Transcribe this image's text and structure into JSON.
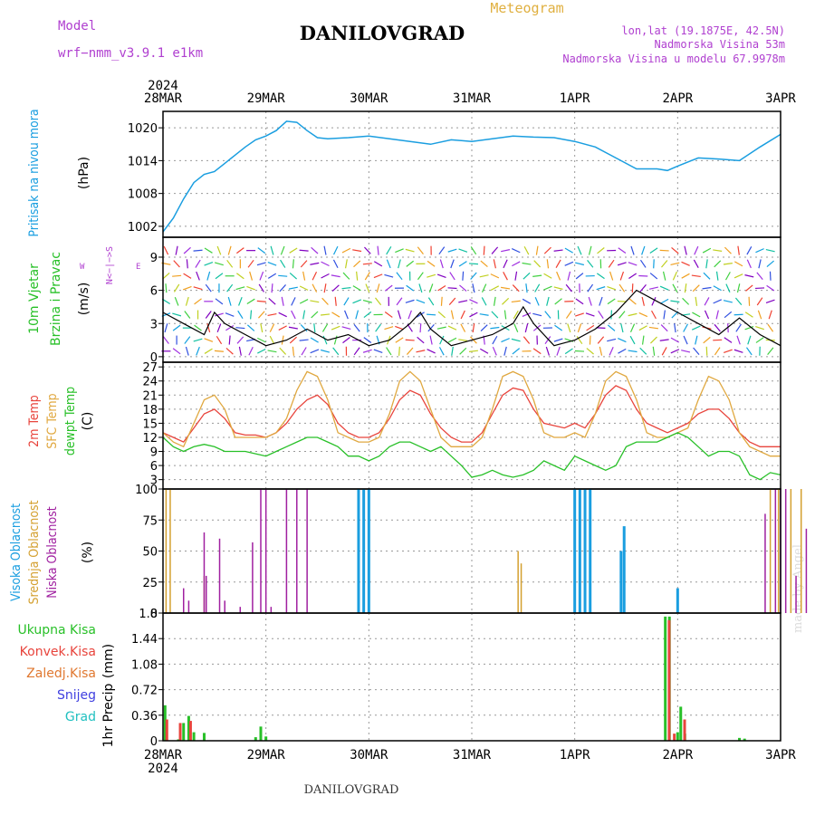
{
  "header": {
    "model_label": "Model",
    "model_name": "wrf−nmm_v3.9.1 e1km",
    "title": "DANILOVGRAD",
    "meteogram_label": "Meteogram",
    "lonlat": "lon,lat (19.1875E, 42.5N)",
    "elevation": "Nadmorska Visina 53m",
    "model_elevation": "Nadmorska Visina u modelu 67.9978m"
  },
  "footer": {
    "station": "DANILOVGRAD",
    "credit": "made by Angel"
  },
  "time_axis": {
    "labels": [
      "28MAR",
      "29MAR",
      "30MAR",
      "31MAR",
      "1APR",
      "2APR",
      "3APR"
    ],
    "year_label": "2024"
  },
  "colors": {
    "pressure": "#1a9ee0",
    "temp_2m": "#e8443c",
    "temp_sfc": "#e0a840",
    "dewpoint": "#28c028",
    "cloud_high": "#1a9ee0",
    "cloud_mid": "#d4a030",
    "cloud_low": "#a020a0",
    "precip_total": "#28c028",
    "precip_conv": "#e8443c",
    "precip_frz": "#e07830",
    "snow": "#4040e0",
    "hail": "#20c0c0",
    "wind_speed": "#000000",
    "gust": "#e8443c"
  },
  "chart_data": [
    {
      "type": "line",
      "panel": "pressure",
      "ylabel_title": "Pritisak na nivou mora",
      "ylabel_unit": "(hPa)",
      "yticks": [
        1002,
        1008,
        1014,
        1020
      ],
      "ylim": [
        1000,
        1023
      ],
      "x_days": [
        0,
        0.1,
        0.2,
        0.3,
        0.4,
        0.5,
        0.6,
        0.7,
        0.8,
        0.9,
        1.0,
        1.1,
        1.2,
        1.3,
        1.4,
        1.5,
        1.6,
        1.8,
        2.0,
        2.2,
        2.4,
        2.6,
        2.8,
        3.0,
        3.2,
        3.4,
        3.6,
        3.8,
        4.0,
        4.2,
        4.4,
        4.6,
        4.8,
        4.9,
        5.0,
        5.2,
        5.4,
        5.6,
        5.8,
        6.0
      ],
      "series": [
        {
          "values": [
            1001,
            1003.5,
            1007,
            1010,
            1011.5,
            1012,
            1013.5,
            1015,
            1016.5,
            1017.8,
            1018.5,
            1019.5,
            1021.2,
            1021,
            1019.5,
            1018.2,
            1018,
            1018.2,
            1018.5,
            1018,
            1017.5,
            1017,
            1017.8,
            1017.5,
            1018,
            1018.5,
            1018.3,
            1018.2,
            1017.5,
            1016.5,
            1014.5,
            1012.5,
            1012.5,
            1012.2,
            1013,
            1014.5,
            1014.3,
            1014,
            1016.5,
            1018.8
          ]
        }
      ],
      "grid": true
    },
    {
      "type": "line",
      "panel": "wind",
      "ylabel_title": "10m Vjetar",
      "ylabel_title2": "Brzina i Pravac",
      "ylabel_unit": "(m/s)",
      "compass_ns": "N<−|−>S",
      "compass_w": "W",
      "compass_e": "E",
      "yticks": [
        0,
        3,
        6,
        9
      ],
      "ylim": [
        -0.5,
        10.8
      ],
      "x_days": [
        0,
        0.2,
        0.4,
        0.5,
        0.6,
        0.8,
        1.0,
        1.2,
        1.4,
        1.6,
        1.8,
        2.0,
        2.2,
        2.4,
        2.5,
        2.6,
        2.8,
        3.0,
        3.2,
        3.4,
        3.5,
        3.6,
        3.8,
        4.0,
        4.2,
        4.4,
        4.6,
        4.8,
        5.0,
        5.2,
        5.4,
        5.6,
        5.8,
        6.0
      ],
      "series": [
        {
          "name": "speed",
          "values": [
            4,
            3,
            2,
            4,
            3,
            2,
            1,
            1.5,
            2.5,
            1.5,
            2,
            1,
            1.5,
            3,
            4,
            2.5,
            1,
            1.5,
            2,
            3,
            4.5,
            3,
            1,
            1.5,
            2.5,
            4,
            6,
            5,
            4,
            3,
            2,
            3.5,
            2,
            1
          ]
        }
      ],
      "grid": true
    },
    {
      "type": "line",
      "panel": "temperature",
      "ylabel_title": "2m Temp",
      "ylabel_title2": "SFC Temp",
      "ylabel_title3": "dewpt Temp",
      "ylabel_unit": "(C)",
      "yticks": [
        3,
        6,
        9,
        12,
        15,
        18,
        21,
        24,
        27
      ],
      "ylim": [
        1,
        28
      ],
      "x_days": [
        0,
        0.1,
        0.2,
        0.3,
        0.4,
        0.5,
        0.6,
        0.7,
        0.8,
        0.9,
        1.0,
        1.1,
        1.2,
        1.3,
        1.4,
        1.5,
        1.6,
        1.7,
        1.8,
        1.9,
        2.0,
        2.1,
        2.2,
        2.3,
        2.4,
        2.5,
        2.6,
        2.7,
        2.8,
        2.9,
        3.0,
        3.1,
        3.2,
        3.3,
        3.4,
        3.5,
        3.6,
        3.7,
        3.8,
        3.9,
        4.0,
        4.1,
        4.2,
        4.3,
        4.4,
        4.5,
        4.6,
        4.7,
        4.8,
        4.9,
        5.0,
        5.1,
        5.2,
        5.3,
        5.4,
        5.5,
        5.6,
        5.7,
        5.8,
        5.9,
        6.0
      ],
      "series": [
        {
          "name": "2m Temp",
          "values": [
            13,
            12,
            11,
            14,
            17,
            18,
            16,
            13,
            12.5,
            12.5,
            12,
            13,
            15,
            18,
            20,
            21,
            19,
            15,
            13,
            12,
            12,
            13,
            16,
            20,
            22,
            21,
            17,
            14,
            12,
            11,
            11,
            13,
            17,
            21,
            22.5,
            22,
            18,
            15,
            14.5,
            14,
            15,
            14,
            17,
            21,
            23,
            22,
            18,
            15,
            14,
            13,
            14,
            15,
            17,
            18,
            18,
            16,
            13,
            11,
            10,
            10,
            10
          ]
        },
        {
          "name": "SFC Temp",
          "values": [
            13,
            11,
            10,
            15,
            20,
            21,
            18,
            12,
            12,
            12,
            12,
            13,
            16,
            22,
            26,
            25,
            20,
            13,
            12,
            11,
            11,
            12,
            17,
            24,
            26,
            24,
            18,
            12,
            10,
            10,
            10,
            12,
            18,
            25,
            26,
            25,
            20,
            13,
            12,
            12,
            13,
            12,
            17,
            24,
            26,
            25,
            20,
            13,
            12,
            12,
            13,
            14,
            20,
            25,
            24,
            20,
            13,
            10,
            9,
            8,
            8
          ]
        },
        {
          "name": "dewpt Temp",
          "values": [
            12,
            10,
            9,
            10,
            10.5,
            10,
            9,
            9,
            9,
            8.5,
            8,
            9,
            10,
            11,
            12,
            12,
            11,
            10,
            8,
            8,
            7,
            8,
            10,
            11,
            11,
            10,
            9,
            10,
            8,
            6,
            3.5,
            4,
            5,
            4,
            3.5,
            4,
            5,
            7,
            6,
            5,
            8,
            7,
            6,
            5,
            6,
            10,
            11,
            11,
            11,
            12,
            13,
            12,
            10,
            8,
            9,
            9,
            8,
            4,
            3,
            4.5,
            4
          ]
        }
      ],
      "grid": true
    },
    {
      "type": "bar",
      "panel": "clouds",
      "ylabel_title": "Visoka Oblacnost",
      "ylabel_title2": "Srednja Oblacnost",
      "ylabel_title3": "Niska Oblacnost",
      "ylabel_unit": "(%)",
      "yticks": [
        0,
        25,
        50,
        75,
        100
      ],
      "ylim": [
        0,
        100
      ],
      "series": [
        {
          "name": "Visoka Oblacnost",
          "x_days": [
            1.9,
            1.95,
            2.0,
            4.45,
            4.48,
            4.0,
            4.05,
            4.1,
            4.15,
            5.0
          ],
          "values": [
            100,
            100,
            100,
            50,
            70,
            100,
            100,
            100,
            100,
            20
          ]
        },
        {
          "name": "Srednja Oblacnost",
          "x_days": [
            0.03,
            0.07,
            0.4,
            3.45,
            3.48,
            5.9,
            5.98,
            6.1,
            6.2,
            6.35
          ],
          "values": [
            100,
            100,
            30,
            50,
            40,
            100,
            100,
            100,
            100,
            20
          ]
        },
        {
          "name": "Niska Oblacnost",
          "x_days": [
            0.2,
            0.25,
            0.4,
            0.42,
            0.55,
            0.6,
            0.75,
            0.87,
            0.95,
            1.0,
            1.05,
            1.2,
            1.3,
            1.4,
            5.85,
            5.95,
            6.0,
            6.05,
            6.15,
            6.25,
            6.5,
            6.65,
            6.75,
            6.95
          ],
          "values": [
            20,
            10,
            65,
            30,
            60,
            10,
            5,
            57,
            100,
            100,
            5,
            100,
            100,
            100,
            80,
            100,
            100,
            100,
            30,
            68,
            10,
            60,
            10,
            12
          ]
        }
      ],
      "grid": true
    },
    {
      "type": "bar",
      "panel": "precip",
      "ylabel_title": "1hr Precip",
      "ylabel_unit": "(mm)",
      "legend": [
        "Ukupna Kisa",
        "Konvek.Kisa",
        "Zaledj.Kisa",
        "Snijeg",
        "Grad"
      ],
      "yticks": [
        0,
        0.36,
        0.72,
        1.08,
        1.44,
        1.8
      ],
      "ylim": [
        0,
        1.8
      ],
      "series": [
        {
          "name": "Ukupna Kisa",
          "x_days": [
            0.02,
            0.15,
            0.2,
            0.25,
            0.3,
            0.4,
            0.9,
            0.95,
            1.0,
            4.88,
            4.92,
            5.0,
            5.03,
            5.07,
            5.6,
            5.65
          ],
          "values": [
            0.5,
            0.02,
            0.25,
            0.35,
            0.12,
            0.11,
            0.05,
            0.2,
            0.06,
            1.75,
            1.75,
            0.12,
            0.48,
            0.1,
            0.04,
            0.03
          ]
        },
        {
          "name": "Konvek.Kisa",
          "x_days": [
            0.02,
            0.15,
            0.25,
            4.9,
            4.95,
            5.05
          ],
          "values": [
            0.3,
            0.25,
            0.28,
            1.7,
            0.1,
            0.3
          ]
        }
      ],
      "grid": true
    }
  ]
}
